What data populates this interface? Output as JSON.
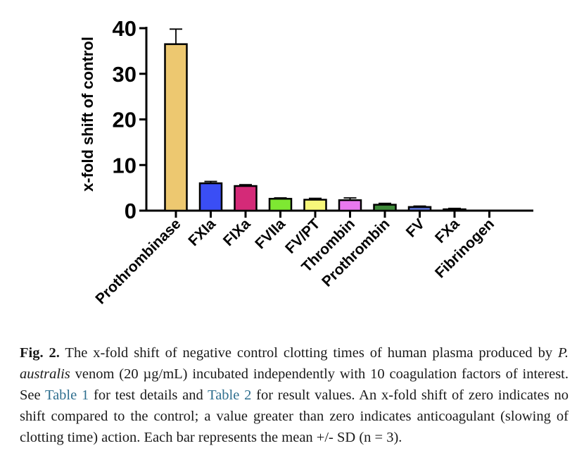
{
  "chart_data": {
    "type": "bar",
    "ylabel": "x-fold shift of control",
    "ylim": [
      0,
      40
    ],
    "yticks": [
      0,
      10,
      20,
      30,
      40
    ],
    "categories": [
      "Prothrombinase",
      "FXIa",
      "FIXa",
      "FVIIa",
      "FV/PT",
      "Thrombin",
      "Prothrombin",
      "FV",
      "FXa",
      "Fibrinogen"
    ],
    "values": [
      36.5,
      6.0,
      5.4,
      2.6,
      2.4,
      2.3,
      1.3,
      0.8,
      0.3,
      0.0
    ],
    "errors": [
      3.3,
      0.4,
      0.3,
      0.2,
      0.3,
      0.5,
      0.3,
      0.2,
      0.2,
      0.0
    ],
    "colors": [
      "#edc870",
      "#3a4ef5",
      "#d42a78",
      "#7ee832",
      "#f7f77a",
      "#e878ef",
      "#3f8a3a",
      "#5a6fd0",
      "#a23aa0",
      "#999999"
    ],
    "grid": false
  },
  "caption": {
    "lead": "Fig. 2.",
    "text1": " The x-fold shift of negative control clotting times of human plasma produced by ",
    "species": "P. australis",
    "text2": " venom (20 µg/mL) incubated independently with 10 coagulation factors of interest. See ",
    "link1": "Table 1",
    "text3": " for test details and ",
    "link2": "Table 2",
    "text4": " for result values. An x-fold shift of zero indicates no shift compared to the control; a value greater than zero indicates anticoagulant (slowing of clotting time) action. Each bar represents the mean +/- SD (n = 3)."
  }
}
